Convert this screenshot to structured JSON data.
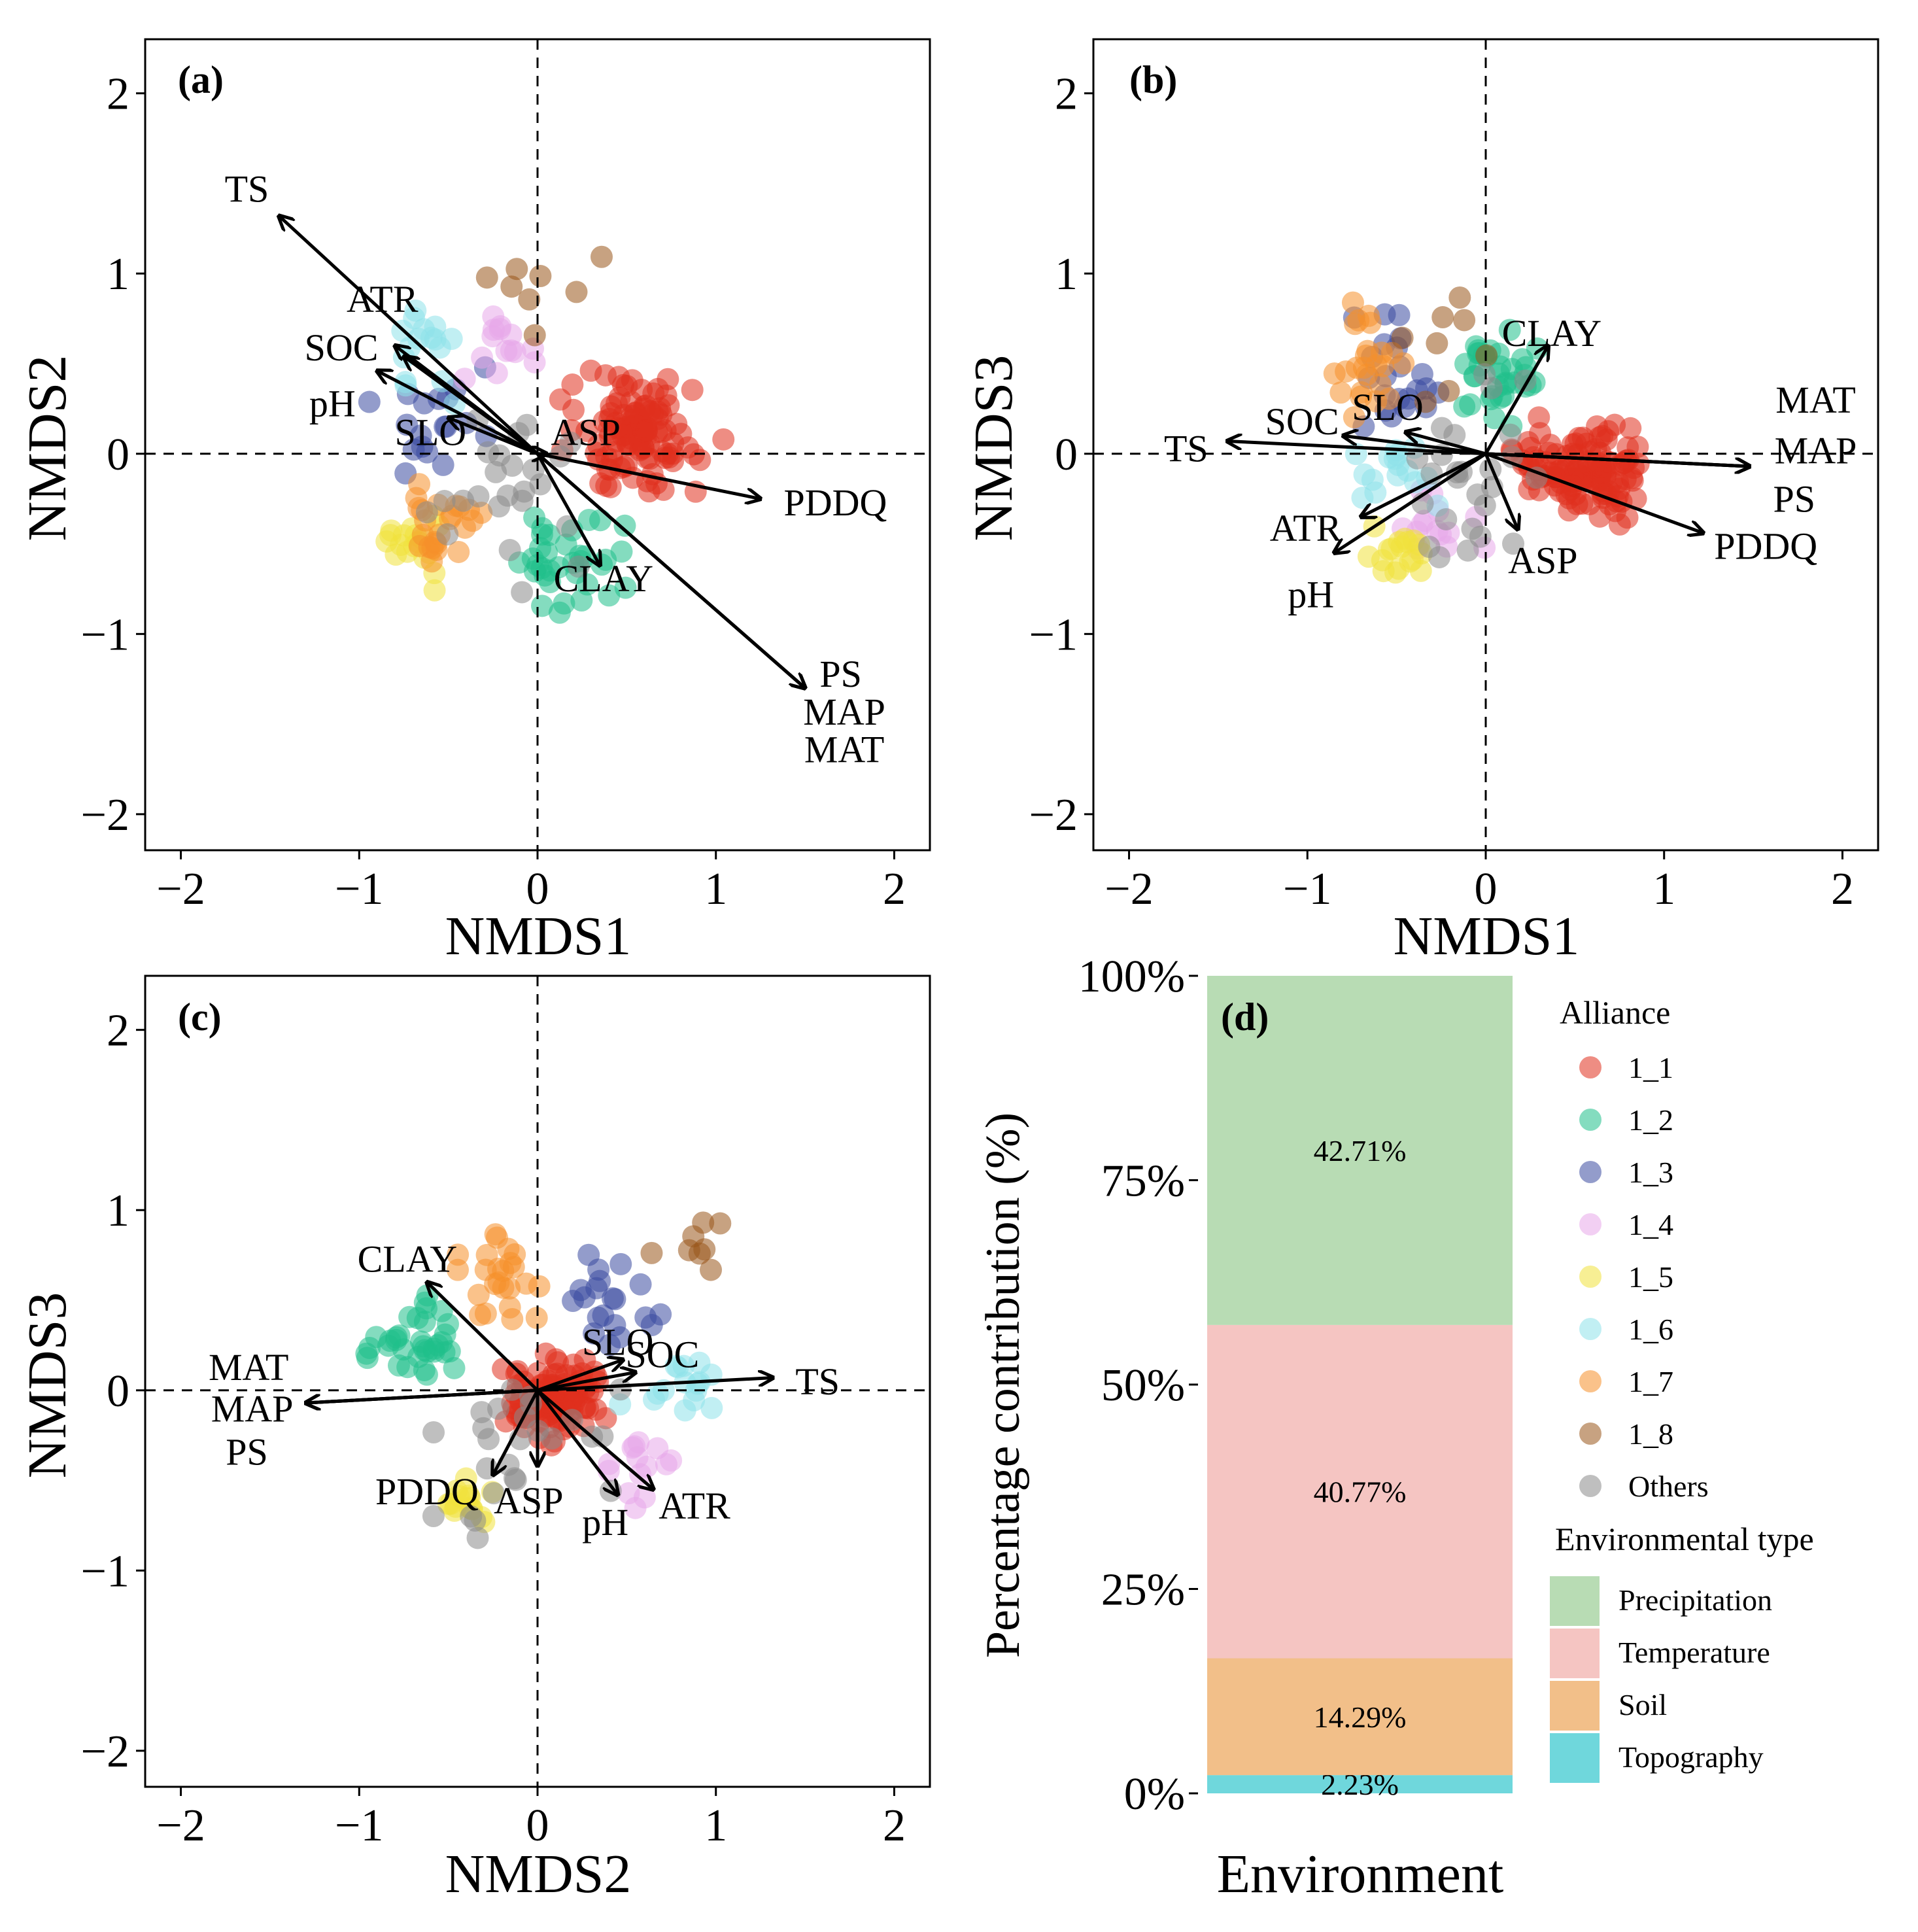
{
  "chart_data": [
    {
      "type": "scatter",
      "panel": "(a)",
      "xlabel": "NMDS1",
      "ylabel": "NMDS2",
      "xlim": [
        -2.2,
        2.2
      ],
      "ylim": [
        -2.2,
        2.3
      ],
      "xticks": [
        -2,
        -1,
        0,
        1,
        2
      ],
      "yticks": [
        -2,
        -1,
        0,
        1,
        2
      ],
      "tick_labels": [
        "−2",
        "−1",
        "0",
        "1",
        "2"
      ],
      "vectors": [
        {
          "name": "TS",
          "x": -1.45,
          "y": 1.32
        },
        {
          "name": "ATR",
          "x": -0.8,
          "y": 0.6
        },
        {
          "name": "SOC",
          "x": -0.75,
          "y": 0.54
        },
        {
          "name": "pH",
          "x": -0.9,
          "y": 0.46
        },
        {
          "name": "SLO",
          "x": -0.5,
          "y": 0.2
        },
        {
          "name": "ASP",
          "x": 0.05,
          "y": 0.0
        },
        {
          "name": "PDDQ",
          "x": 1.25,
          "y": -0.25
        },
        {
          "name": "CLAY",
          "x": 0.35,
          "y": -0.62
        },
        {
          "name": "PS",
          "x": 1.5,
          "y": -1.3
        },
        {
          "name": "MAP",
          "x": 1.5,
          "y": -1.3
        },
        {
          "name": "MAT",
          "x": 1.5,
          "y": -1.3
        }
      ],
      "vector_labels": [
        {
          "name": "TS",
          "x": -1.63,
          "y": 1.47
        },
        {
          "name": "ATR",
          "x": -0.87,
          "y": 0.86
        },
        {
          "name": "SOC",
          "x": -1.1,
          "y": 0.59
        },
        {
          "name": "pH",
          "x": -1.15,
          "y": 0.28
        },
        {
          "name": "SLO",
          "x": -0.6,
          "y": 0.12
        },
        {
          "name": "ASP",
          "x": 0.27,
          "y": 0.12
        },
        {
          "name": "PDDQ",
          "x": 1.67,
          "y": -0.27
        },
        {
          "name": "CLAY",
          "x": 0.37,
          "y": -0.69
        },
        {
          "name": "PS",
          "x": 1.7,
          "y": -1.22
        },
        {
          "name": "MAP",
          "x": 1.72,
          "y": -1.43
        },
        {
          "name": "MAT",
          "x": 1.72,
          "y": -1.64
        }
      ]
    },
    {
      "type": "scatter",
      "panel": "(b)",
      "xlabel": "NMDS1",
      "ylabel": "NMDS3",
      "xlim": [
        -2.2,
        2.2
      ],
      "ylim": [
        -2.2,
        2.3
      ],
      "xticks": [
        -2,
        -1,
        0,
        1,
        2
      ],
      "yticks": [
        -2,
        -1,
        0,
        1,
        2
      ],
      "tick_labels": [
        "−2",
        "−1",
        "0",
        "1",
        "2"
      ],
      "vectors": [
        {
          "name": "TS",
          "x": -1.45,
          "y": 0.07
        },
        {
          "name": "SOC",
          "x": -0.8,
          "y": 0.1
        },
        {
          "name": "SLO",
          "x": -0.45,
          "y": 0.12
        },
        {
          "name": "CLAY",
          "x": 0.35,
          "y": 0.6
        },
        {
          "name": "ATR",
          "x": -0.7,
          "y": -0.35
        },
        {
          "name": "pH",
          "x": -0.85,
          "y": -0.55
        },
        {
          "name": "ASP",
          "x": 0.18,
          "y": -0.42
        },
        {
          "name": "MAT",
          "x": 1.48,
          "y": -0.07
        },
        {
          "name": "MAP",
          "x": 1.48,
          "y": -0.07
        },
        {
          "name": "PS",
          "x": 1.48,
          "y": -0.07
        },
        {
          "name": "PDDQ",
          "x": 1.22,
          "y": -0.44
        }
      ],
      "vector_labels": [
        {
          "name": "TS",
          "x": -1.68,
          "y": 0.03
        },
        {
          "name": "SOC",
          "x": -1.03,
          "y": 0.18
        },
        {
          "name": "SLO",
          "x": -0.55,
          "y": 0.26
        },
        {
          "name": "CLAY",
          "x": 0.37,
          "y": 0.67
        },
        {
          "name": "ATR",
          "x": -1.01,
          "y": -0.41
        },
        {
          "name": "pH",
          "x": -0.98,
          "y": -0.78
        },
        {
          "name": "ASP",
          "x": 0.32,
          "y": -0.59
        },
        {
          "name": "MAT",
          "x": 1.85,
          "y": 0.3
        },
        {
          "name": "MAP",
          "x": 1.85,
          "y": 0.02
        },
        {
          "name": "PS",
          "x": 1.73,
          "y": -0.25
        },
        {
          "name": "PDDQ",
          "x": 1.57,
          "y": -0.51
        }
      ]
    },
    {
      "type": "scatter",
      "panel": "(c)",
      "xlabel": "NMDS2",
      "ylabel": "NMDS3",
      "xlim": [
        -2.2,
        2.2
      ],
      "ylim": [
        -2.2,
        2.3
      ],
      "xticks": [
        -2,
        -1,
        0,
        1,
        2
      ],
      "yticks": [
        -2,
        -1,
        0,
        1,
        2
      ],
      "tick_labels": [
        "−2",
        "−1",
        "0",
        "1",
        "2"
      ],
      "vectors": [
        {
          "name": "MAT",
          "x": -1.3,
          "y": -0.07
        },
        {
          "name": "MAP",
          "x": -1.3,
          "y": -0.07
        },
        {
          "name": "PS",
          "x": -1.3,
          "y": -0.07
        },
        {
          "name": "CLAY",
          "x": -0.62,
          "y": 0.6
        },
        {
          "name": "SLO",
          "x": 0.48,
          "y": 0.17
        },
        {
          "name": "SOC",
          "x": 0.55,
          "y": 0.1
        },
        {
          "name": "TS",
          "x": 1.32,
          "y": 0.07
        },
        {
          "name": "PDDQ",
          "x": -0.25,
          "y": -0.47
        },
        {
          "name": "ASP",
          "x": 0.0,
          "y": -0.42
        },
        {
          "name": "pH",
          "x": 0.45,
          "y": -0.58
        },
        {
          "name": "ATR",
          "x": 0.65,
          "y": -0.55
        }
      ],
      "vector_labels": [
        {
          "name": "MAT",
          "x": -1.62,
          "y": 0.13
        },
        {
          "name": "MAP",
          "x": -1.6,
          "y": -0.1
        },
        {
          "name": "PS",
          "x": -1.63,
          "y": -0.34
        },
        {
          "name": "CLAY",
          "x": -0.73,
          "y": 0.73
        },
        {
          "name": "SLO",
          "x": 0.45,
          "y": 0.27
        },
        {
          "name": "SOC",
          "x": 0.7,
          "y": 0.2
        },
        {
          "name": "TS",
          "x": 1.57,
          "y": 0.05
        },
        {
          "name": "PDDQ",
          "x": -0.62,
          "y": -0.56
        },
        {
          "name": "ASP",
          "x": -0.05,
          "y": -0.61
        },
        {
          "name": "pH",
          "x": 0.38,
          "y": -0.73
        },
        {
          "name": "ATR",
          "x": 0.88,
          "y": -0.64
        }
      ]
    },
    {
      "type": "bar",
      "panel": "(d)",
      "xlabel": "Environment",
      "ylabel": "Percentage contribution (%)",
      "yticks": [
        "0%",
        "25%",
        "50%",
        "75%",
        "100%"
      ],
      "stacking": "stacked",
      "segments": [
        {
          "name": "Topography",
          "value": 2.23,
          "label": "2.23%",
          "color": "#6fd7dc"
        },
        {
          "name": "Soil",
          "value": 14.29,
          "label": "14.29%",
          "color": "#f2bf89"
        },
        {
          "name": "Temperature",
          "value": 40.77,
          "label": "40.77%",
          "color": "#f5c5c2"
        },
        {
          "name": "Precipitation",
          "value": 42.71,
          "label": "42.71%",
          "color": "#b8dcb4"
        }
      ]
    }
  ],
  "legend": {
    "alliance_title": "Alliance",
    "alliances": [
      {
        "name": "1_1",
        "color": "#e0301e"
      },
      {
        "name": "1_2",
        "color": "#1fbf8a"
      },
      {
        "name": "1_3",
        "color": "#3a4aa0"
      },
      {
        "name": "1_4",
        "color": "#e7a8ea"
      },
      {
        "name": "1_5",
        "color": "#f1e23c"
      },
      {
        "name": "1_6",
        "color": "#8ee1ea"
      },
      {
        "name": "1_7",
        "color": "#f5902a"
      },
      {
        "name": "1_8",
        "color": "#99551a"
      },
      {
        "name": "Others",
        "color": "#8a8a8a"
      }
    ],
    "env_title": "Environmental type",
    "env_types": [
      {
        "name": "Precipitation",
        "color": "#b8dcb4"
      },
      {
        "name": "Temperature",
        "color": "#f5c5c2"
      },
      {
        "name": "Soil",
        "color": "#f2bf89"
      },
      {
        "name": "Topography",
        "color": "#6fd7dc"
      }
    ]
  }
}
